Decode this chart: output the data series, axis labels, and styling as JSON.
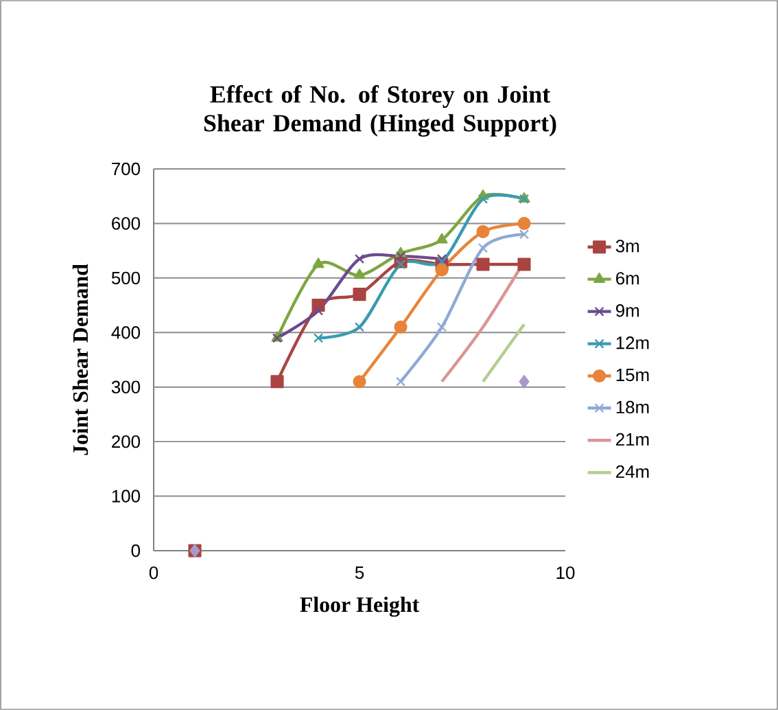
{
  "chart_data": {
    "type": "line",
    "title": "Effect of No. of Storey on Joint Shear Demand (Hinged Support)",
    "xlabel": "Floor Height",
    "ylabel": "Joint Shear Demand",
    "x": [
      1,
      2,
      3,
      4,
      5,
      6,
      7,
      8,
      9
    ],
    "xlim": [
      0,
      10
    ],
    "xticks": [
      0,
      5,
      10
    ],
    "ylim": [
      0,
      700
    ],
    "yticks": [
      0,
      100,
      200,
      300,
      400,
      500,
      600,
      700
    ],
    "grid": "y",
    "legend": "right",
    "series": [
      {
        "name": "3m",
        "color": "#a94442",
        "marker": "square",
        "values": [
          0,
          null,
          310,
          450,
          470,
          530,
          525,
          525,
          525
        ]
      },
      {
        "name": "6m",
        "color": "#7ea543",
        "marker": "triangle",
        "values": [
          null,
          null,
          390,
          525,
          505,
          545,
          570,
          650,
          645
        ]
      },
      {
        "name": "9m",
        "color": "#6b4a8e",
        "marker": "cross",
        "values": [
          null,
          null,
          390,
          440,
          535,
          540,
          535,
          null,
          null
        ]
      },
      {
        "name": "12m",
        "color": "#3a9bb0",
        "marker": "cross",
        "values": [
          null,
          null,
          null,
          390,
          410,
          525,
          530,
          645,
          645
        ]
      },
      {
        "name": "15m",
        "color": "#e8843a",
        "marker": "circle",
        "values": [
          null,
          null,
          null,
          null,
          310,
          410,
          515,
          585,
          600
        ]
      },
      {
        "name": "18m",
        "color": "#8eaad6",
        "marker": "cross",
        "values": [
          null,
          null,
          null,
          null,
          null,
          310,
          410,
          555,
          580
        ]
      },
      {
        "name": "21m",
        "color": "#d99594",
        "marker": "none",
        "values": [
          null,
          null,
          null,
          null,
          null,
          null,
          310,
          410,
          530
        ]
      },
      {
        "name": "24m",
        "color": "#b3cf8f",
        "marker": "none",
        "values": [
          null,
          null,
          null,
          null,
          null,
          null,
          null,
          310,
          415
        ]
      },
      {
        "color": "#a899c9",
        "marker": "diamond",
        "type": "scatter",
        "values": [
          0,
          null,
          null,
          null,
          null,
          null,
          null,
          null,
          310
        ]
      }
    ]
  }
}
